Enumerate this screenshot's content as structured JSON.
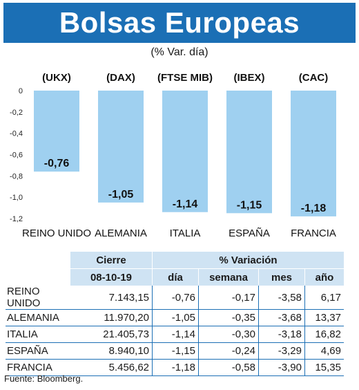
{
  "header": {
    "title": "Bolsas Europeas",
    "subtitle": "(% Var. día)"
  },
  "chart_data": {
    "type": "bar",
    "categories": [
      "REINO UNIDO",
      "ALEMANIA",
      "ITALIA",
      "ESPAÑA",
      "FRANCIA"
    ],
    "index_codes": [
      "(UKX)",
      "(DAX)",
      "(FTSE MIB)",
      "(IBEX)",
      "(CAC)"
    ],
    "values": [
      -0.76,
      -1.05,
      -1.14,
      -1.15,
      -1.18
    ],
    "value_labels": [
      "-0,76",
      "-1,05",
      "-1,14",
      "-1,15",
      "-1,18"
    ],
    "yticks": [
      0,
      -0.2,
      -0.4,
      -0.6,
      -0.8,
      -1.0,
      -1.2
    ],
    "ytick_labels": [
      "0",
      "-0,2",
      "-0,4",
      "-0,6",
      "-0,8",
      "-1,0",
      "-1,2"
    ],
    "ylim": [
      -1.2,
      0
    ],
    "bar_color": "#9fd0f0",
    "grid": false
  },
  "table": {
    "header_cierre": "Cierre",
    "header_variacion": "% Variación",
    "header_date": "08-10-19",
    "subheaders": [
      "día",
      "semana",
      "mes",
      "año"
    ],
    "rows": [
      {
        "name": "REINO UNIDO",
        "cierre": "7.143,15",
        "dia": "-0,76",
        "semana": "-0,17",
        "mes": "-3,58",
        "anio": "6,17"
      },
      {
        "name": "ALEMANIA",
        "cierre": "11.970,20",
        "dia": "-1,05",
        "semana": "-0,35",
        "mes": "-3,68",
        "anio": "13,37"
      },
      {
        "name": "ITALIA",
        "cierre": "21.405,73",
        "dia": "-1,14",
        "semana": "-0,30",
        "mes": "-3,18",
        "anio": "16,82"
      },
      {
        "name": "ESPAÑA",
        "cierre": "8.940,10",
        "dia": "-1,15",
        "semana": "-0,24",
        "mes": "-3,29",
        "anio": "4,69"
      },
      {
        "name": "FRANCIA",
        "cierre": "5.456,62",
        "dia": "-1,18",
        "semana": "-0,58",
        "mes": "-3,90",
        "anio": "15,35"
      }
    ]
  },
  "footer": {
    "source": "Fuente: Bloomberg."
  },
  "colors": {
    "banner": "#1b6fb5",
    "bars": "#9fd0f0",
    "table_header": "#cfe3f3"
  }
}
